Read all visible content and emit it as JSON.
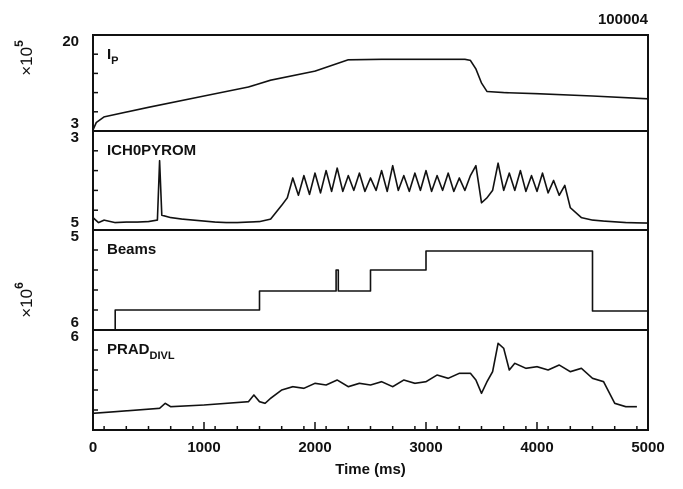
{
  "chart_data": [
    {
      "type": "line",
      "label": {
        "main": "I",
        "sub": "P"
      },
      "annotation": "100004",
      "multiplier": {
        "base": "×10",
        "exp": "5"
      },
      "xlim": [
        0,
        5000
      ],
      "ylim": [
        3,
        20
      ],
      "yticks": [
        3,
        20
      ],
      "x": [
        0,
        30,
        100,
        500,
        1000,
        1400,
        1600,
        2000,
        2300,
        2600,
        3000,
        3350,
        3400,
        3450,
        3500,
        3550,
        3700,
        4000,
        4500,
        5000
      ],
      "values": [
        3.2,
        4.5,
        5.5,
        7.2,
        9.2,
        10.8,
        12.0,
        13.6,
        15.6,
        15.7,
        15.7,
        15.7,
        15.5,
        14.0,
        11.5,
        10.0,
        9.8,
        9.6,
        9.2,
        8.7
      ]
    },
    {
      "type": "line",
      "label": {
        "main": "ICH0PYROM"
      },
      "xlim": [
        0,
        5000
      ],
      "ylim": [
        5,
        3
      ],
      "yticks": [
        3,
        5
      ],
      "x": [
        0,
        50,
        100,
        200,
        300,
        400,
        500,
        580,
        600,
        620,
        700,
        800,
        900,
        1000,
        1100,
        1200,
        1300,
        1400,
        1500,
        1600,
        1700,
        1750,
        1800,
        1850,
        1900,
        1950,
        2000,
        2050,
        2100,
        2150,
        2200,
        2250,
        2300,
        2350,
        2400,
        2450,
        2500,
        2550,
        2600,
        2650,
        2700,
        2750,
        2800,
        2850,
        2900,
        2950,
        3000,
        3050,
        3100,
        3150,
        3200,
        3250,
        3300,
        3350,
        3400,
        3450,
        3500,
        3550,
        3600,
        3650,
        3700,
        3750,
        3800,
        3850,
        3900,
        3950,
        4000,
        4050,
        4100,
        4150,
        4200,
        4250,
        4300,
        4400,
        4500,
        4600,
        4800,
        5000
      ],
      "values": [
        4.75,
        4.85,
        4.8,
        4.85,
        4.84,
        4.84,
        4.83,
        4.8,
        3.6,
        4.7,
        4.75,
        4.78,
        4.8,
        4.82,
        4.84,
        4.85,
        4.85,
        4.84,
        4.83,
        4.78,
        4.5,
        4.35,
        3.95,
        4.3,
        3.9,
        4.28,
        3.85,
        4.25,
        3.8,
        4.22,
        3.75,
        4.22,
        3.9,
        4.2,
        3.85,
        4.22,
        3.95,
        4.2,
        3.8,
        4.22,
        3.7,
        4.2,
        3.9,
        4.22,
        3.85,
        4.2,
        3.8,
        4.22,
        3.9,
        4.2,
        3.85,
        4.22,
        3.95,
        4.2,
        3.9,
        3.7,
        4.45,
        4.35,
        4.2,
        3.65,
        4.2,
        3.85,
        4.2,
        3.8,
        4.22,
        3.9,
        4.22,
        3.85,
        4.25,
        4.0,
        4.3,
        4.1,
        4.55,
        4.75,
        4.8,
        4.82,
        4.85,
        4.86
      ]
    },
    {
      "type": "line",
      "label": {
        "main": "Beams"
      },
      "multiplier": {
        "base": "×10",
        "exp": "6"
      },
      "xlim": [
        0,
        5000
      ],
      "ylim": [
        6,
        5
      ],
      "yticks": [
        5,
        6
      ],
      "x": [
        200,
        200,
        1500,
        1500,
        2190,
        2190,
        2210,
        2210,
        2500,
        2500,
        3000,
        3000,
        4500,
        4500,
        5000
      ],
      "values": [
        6,
        5.8,
        5.8,
        5.61,
        5.61,
        5.4,
        5.4,
        5.61,
        5.61,
        5.4,
        5.4,
        5.21,
        5.21,
        5.81,
        5.81
      ]
    },
    {
      "type": "line",
      "label": {
        "main": "PRAD",
        "sub": "DIVL"
      },
      "xlim": [
        0,
        5000
      ],
      "ylim": [
        0,
        6
      ],
      "yticks": [
        6
      ],
      "xticks": [
        0,
        1000,
        2000,
        3000,
        4000,
        5000
      ],
      "xlabel": "Time (ms)",
      "x": [
        0,
        200,
        600,
        650,
        700,
        1000,
        1400,
        1450,
        1500,
        1550,
        1600,
        1700,
        1800,
        1900,
        2000,
        2100,
        2200,
        2300,
        2400,
        2500,
        2600,
        2700,
        2800,
        2900,
        3000,
        3100,
        3200,
        3300,
        3400,
        3450,
        3500,
        3550,
        3600,
        3650,
        3700,
        3750,
        3800,
        3900,
        4000,
        4100,
        4200,
        4300,
        4400,
        4500,
        4600,
        4700,
        4800,
        4900
      ],
      "values": [
        1.0,
        1.1,
        1.3,
        1.6,
        1.4,
        1.5,
        1.7,
        2.1,
        1.7,
        1.6,
        1.9,
        2.4,
        2.6,
        2.5,
        2.8,
        2.7,
        3.0,
        2.6,
        2.8,
        2.7,
        2.9,
        2.6,
        3.0,
        2.8,
        2.9,
        3.3,
        3.1,
        3.4,
        3.4,
        3.0,
        2.2,
        2.9,
        3.5,
        5.2,
        4.9,
        3.6,
        4.0,
        3.7,
        3.8,
        3.6,
        3.9,
        3.5,
        3.7,
        3.1,
        2.9,
        1.6,
        1.4,
        1.4
      ]
    }
  ]
}
